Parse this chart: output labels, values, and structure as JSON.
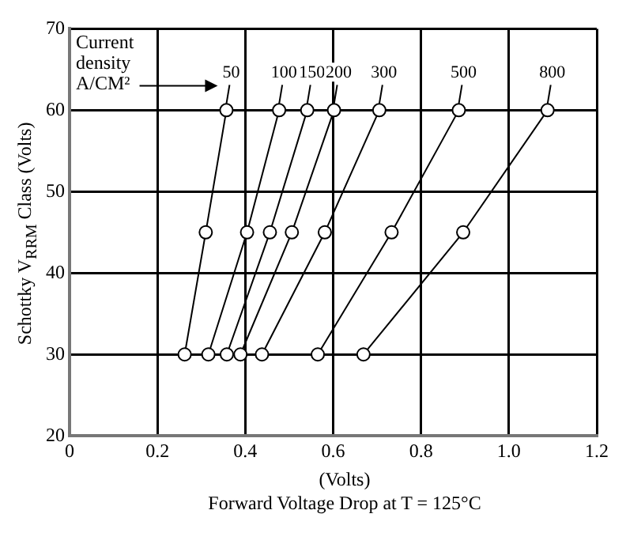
{
  "chart_data": {
    "type": "line",
    "xlabel": "(Volts)\nForward Voltage Drop at T = 125°C",
    "ylabel": "Schottky V$_{RRM}$ Class (Volts)",
    "annotations": [
      "Current density A/CM²"
    ],
    "series": [
      {
        "name": "50",
        "color": "#000000",
        "x": [
          0.262,
          0.31,
          0.357
        ],
        "values": [
          30,
          45,
          60
        ]
      },
      {
        "name": "100",
        "color": "#000000",
        "x": [
          0.316,
          0.404,
          0.477
        ],
        "values": [
          30,
          45,
          60
        ]
      },
      {
        "name": "150",
        "color": "#000000",
        "x": [
          0.358,
          0.456,
          0.541
        ],
        "values": [
          30,
          45,
          60
        ]
      },
      {
        "name": "200",
        "color": "#000000",
        "x": [
          0.389,
          0.506,
          0.602
        ],
        "values": [
          30,
          45,
          60
        ]
      },
      {
        "name": "300",
        "color": "#000000",
        "x": [
          0.438,
          0.581,
          0.705
        ],
        "values": [
          30,
          45,
          60
        ]
      },
      {
        "name": "500",
        "color": "#000000",
        "x": [
          0.565,
          0.733,
          0.886
        ],
        "values": [
          30,
          45,
          60
        ]
      },
      {
        "name": "800",
        "color": "#000000",
        "x": [
          0.669,
          0.896,
          1.088
        ],
        "values": [
          30,
          45,
          60
        ]
      }
    ],
    "xlim": [
      0,
      1.2
    ],
    "xticks": [
      0,
      0.2,
      0.4,
      0.6,
      0.8,
      {
        "value": 1.0,
        "label": "1.0"
      },
      1.2
    ],
    "ylim": [
      20,
      70
    ],
    "yticks": [
      20,
      30,
      40,
      50,
      60,
      70
    ],
    "grid": true,
    "legend": false,
    "marker": "circle",
    "line_style": "solid"
  }
}
